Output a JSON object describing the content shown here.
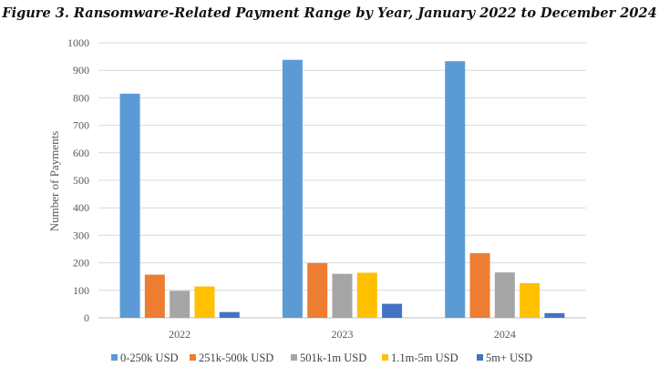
{
  "chart_data": {
    "type": "bar",
    "title": "Figure 3. Ransomware-Related Payment Range by Year, January 2022 to December 2024",
    "xlabel": "",
    "ylabel": "Number of Payments",
    "ylim": [
      0,
      1000
    ],
    "yticks": [
      0,
      100,
      200,
      300,
      400,
      500,
      600,
      700,
      800,
      900,
      1000
    ],
    "categories": [
      "2022",
      "2023",
      "2024"
    ],
    "legend_position": "bottom",
    "grid": true,
    "series": [
      {
        "name": "0-250k USD",
        "color": "#5B9BD5",
        "values": [
          815,
          938,
          933
        ]
      },
      {
        "name": "251k-500k USD",
        "color": "#ED7D31",
        "values": [
          157,
          199,
          235
        ]
      },
      {
        "name": "501k-1m USD",
        "color": "#A5A5A5",
        "values": [
          98,
          160,
          165
        ]
      },
      {
        "name": "1.1m-5m USD",
        "color": "#FFC000",
        "values": [
          114,
          164,
          126
        ]
      },
      {
        "name": "5m+ USD",
        "color": "#4472C4",
        "values": [
          21,
          51,
          17
        ]
      }
    ]
  }
}
